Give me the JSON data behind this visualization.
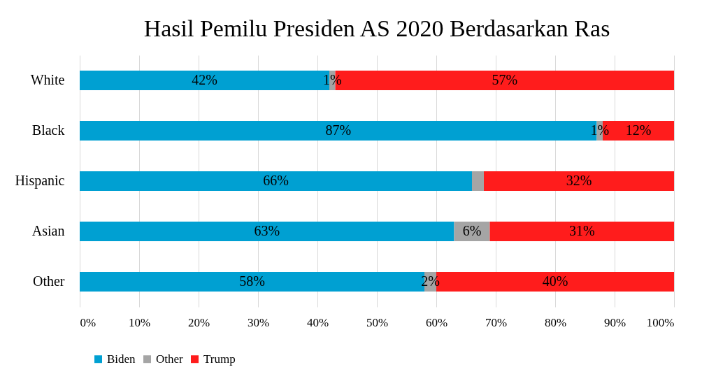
{
  "chart_data": {
    "type": "bar",
    "orientation": "horizontal",
    "stacked": true,
    "title": "Hasil Pemilu Presiden AS 2020 Berdasarkan Ras",
    "categories": [
      "White",
      "Black",
      "Hispanic",
      "Asian",
      "Other"
    ],
    "series": [
      {
        "name": "Biden",
        "color": "#00a0d2",
        "values": [
          42,
          87,
          66,
          63,
          58
        ],
        "value_labels": [
          "42%",
          "87%",
          "66%",
          "63%",
          "58%"
        ]
      },
      {
        "name": "Other",
        "color": "#a5a5a5",
        "values": [
          1,
          1,
          2,
          6,
          2
        ],
        "value_labels": [
          "1%",
          "1%",
          null,
          "6%",
          "2%"
        ]
      },
      {
        "name": "Trump",
        "color": "#ff1c1c",
        "values": [
          57,
          12,
          32,
          31,
          40
        ],
        "value_labels": [
          "57%",
          "12%",
          "32%",
          "31%",
          "40%"
        ]
      }
    ],
    "xlim": [
      0,
      100
    ],
    "xticks": [
      {
        "value": 0,
        "label": "0%"
      },
      {
        "value": 10,
        "label": "10%"
      },
      {
        "value": 20,
        "label": "20%"
      },
      {
        "value": 30,
        "label": "30%"
      },
      {
        "value": 40,
        "label": "40%"
      },
      {
        "value": 50,
        "label": "50%"
      },
      {
        "value": 60,
        "label": "60%"
      },
      {
        "value": 70,
        "label": "70%"
      },
      {
        "value": 80,
        "label": "80%"
      },
      {
        "value": 90,
        "label": "90%"
      },
      {
        "value": 100,
        "label": "100%"
      }
    ],
    "grid": "x",
    "legend": "bottom"
  }
}
